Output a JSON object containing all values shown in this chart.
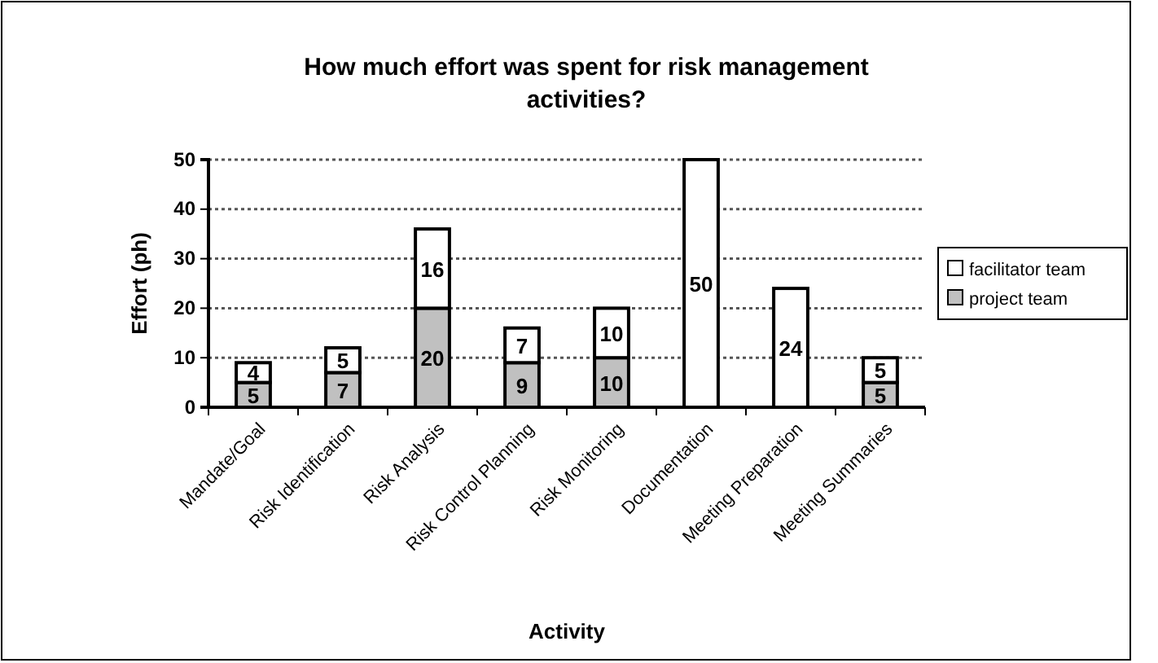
{
  "chart_data": {
    "type": "bar",
    "title": "How much effort was spent for risk management activities?",
    "xlabel": "Activity",
    "ylabel": "Effort (ph)",
    "categories": [
      "Mandate/Goal",
      "Risk Identification",
      "Risk Analysis",
      "Risk Control Planning",
      "Risk Monitoring",
      "Documentation",
      "Meeting Preparation",
      "Meeting Summaries"
    ],
    "stacked": true,
    "series": [
      {
        "name": "project team",
        "color": "#c0c0c0",
        "values": [
          5,
          7,
          20,
          9,
          10,
          null,
          null,
          5
        ],
        "value_labels": [
          "5",
          "7",
          "20",
          "9",
          "10",
          null,
          null,
          "5"
        ]
      },
      {
        "name": "facilitator team",
        "color": "#ffffff",
        "values": [
          4,
          5,
          16,
          7,
          10,
          50,
          24,
          5
        ],
        "value_labels": [
          "4",
          "5",
          "16",
          "7",
          "10",
          "50",
          "24",
          "5"
        ]
      }
    ],
    "ylim": [
      0,
      50
    ],
    "yticks": [
      0,
      10,
      20,
      30,
      40,
      50
    ],
    "grid": "y",
    "legend": "right",
    "line_style": "dotted"
  }
}
